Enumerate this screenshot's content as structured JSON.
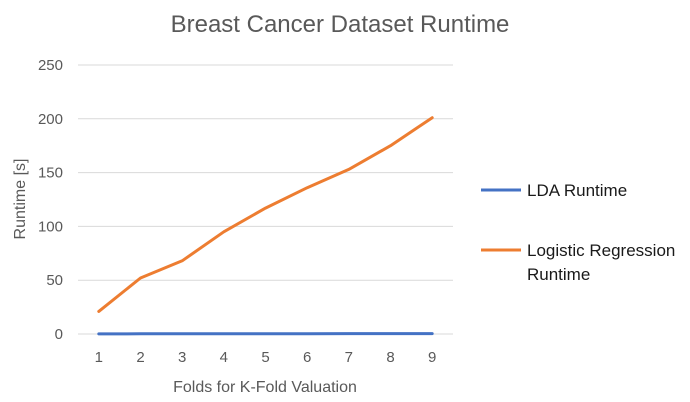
{
  "chart_data": {
    "type": "line",
    "title": "Breast Cancer Dataset Runtime",
    "xlabel": "Folds for K-Fold Valuation",
    "ylabel": "Runtime [s]",
    "x": [
      1,
      2,
      3,
      4,
      5,
      6,
      7,
      8,
      9
    ],
    "ylim": [
      0,
      250
    ],
    "yticks": [
      0,
      50,
      100,
      150,
      200,
      250
    ],
    "grid": true,
    "legend_position": "right",
    "series": [
      {
        "name": "LDA Runtime",
        "color": "#4472c4",
        "values": [
          0.1,
          0.2,
          0.2,
          0.3,
          0.3,
          0.3,
          0.4,
          0.4,
          0.4
        ]
      },
      {
        "name": "Logistic Regression Runtime",
        "color": "#ed7d31",
        "legend_lines": [
          "Logistic Regression",
          "Runtime"
        ],
        "values": [
          21,
          52,
          68,
          95,
          117,
          136,
          153,
          175,
          201
        ]
      }
    ]
  }
}
